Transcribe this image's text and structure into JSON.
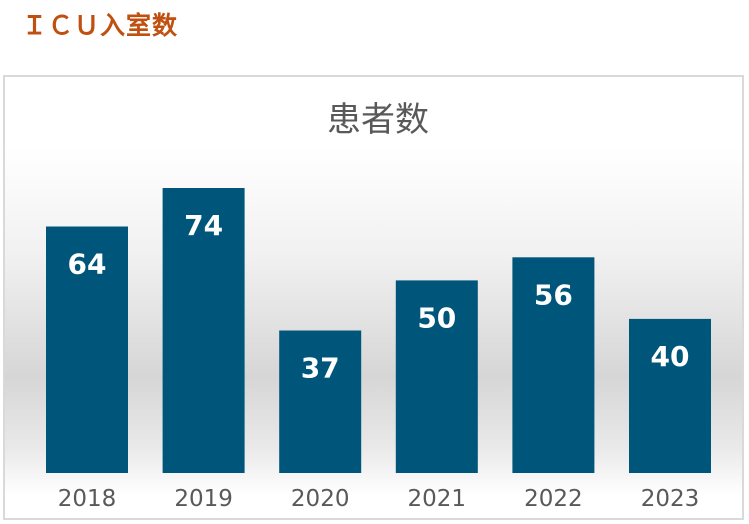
{
  "page": {
    "heading": "ＩＣＵ入室数"
  },
  "chart_data": {
    "type": "bar",
    "title": "患者数",
    "xlabel": "",
    "ylabel": "",
    "categories": [
      "2018",
      "2019",
      "2020",
      "2021",
      "2022",
      "2023"
    ],
    "values": [
      64,
      74,
      37,
      50,
      56,
      40
    ],
    "data_labels": [
      "64",
      "74",
      "37",
      "50",
      "56",
      "40"
    ],
    "ylim": [
      0,
      74
    ],
    "grid": false,
    "legend": "none",
    "colors": {
      "bar": "#00557a",
      "heading": "#c0500f",
      "text": "#595959"
    }
  }
}
